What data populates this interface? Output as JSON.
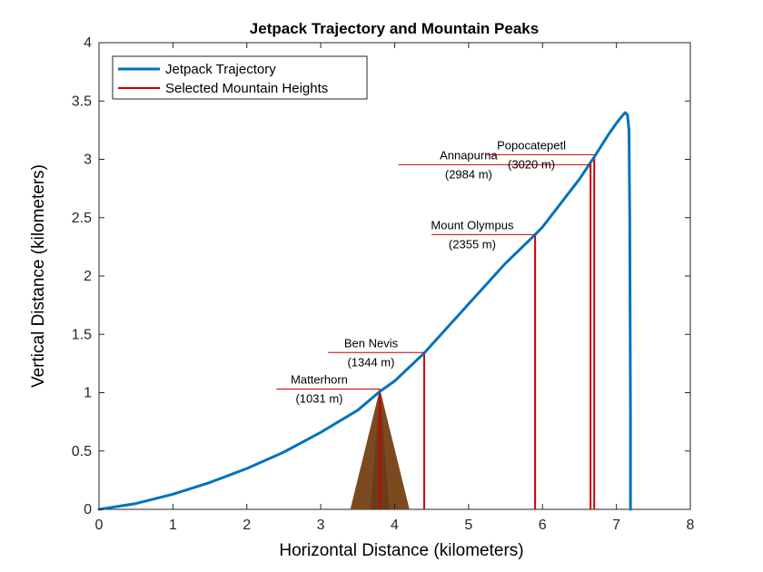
{
  "chart_data": {
    "type": "line",
    "title": "Jetpack Trajectory and Mountain Peaks",
    "xlabel": "Horizontal Distance (kilometers)",
    "ylabel": "Vertical Distance (kilometers)",
    "xlim": [
      0,
      8
    ],
    "ylim": [
      0,
      4
    ],
    "xticks": [
      "0",
      "1",
      "2",
      "3",
      "4",
      "5",
      "6",
      "7",
      "8"
    ],
    "yticks": [
      "0",
      "0.5",
      "1",
      "1.5",
      "2",
      "2.5",
      "3",
      "3.5",
      "4"
    ],
    "grid": false,
    "legend_position": "top-left",
    "series": [
      {
        "name": "Jetpack Trajectory",
        "color": "#0072BD",
        "x": [
          0,
          0.5,
          1,
          1.5,
          2,
          2.5,
          3,
          3.5,
          3.8,
          4,
          4.4,
          4.5,
          5,
          5.5,
          5.9,
          6,
          6.5,
          6.7,
          6.9,
          7.0,
          7.1,
          7.12,
          7.15,
          7.17,
          7.18,
          7.19,
          7.19
        ],
        "y": [
          0,
          0.05,
          0.13,
          0.23,
          0.35,
          0.49,
          0.66,
          0.85,
          1.01,
          1.1,
          1.34,
          1.41,
          1.76,
          2.11,
          2.355,
          2.42,
          2.83,
          3.02,
          3.22,
          3.31,
          3.39,
          3.4,
          3.38,
          3.25,
          2.5,
          0.8,
          0
        ]
      },
      {
        "name": "Selected Mountain Heights",
        "color": "#CC0000"
      }
    ],
    "mountains": [
      {
        "name": "Matterhorn",
        "height_label": "(1031 m)",
        "x": 3.8,
        "height": 1.031
      },
      {
        "name": "Ben Nevis",
        "height_label": "(1344 m)",
        "x": 4.4,
        "height": 1.344
      },
      {
        "name": "Mount Olympus",
        "height_label": "(2355 m)",
        "x": 5.9,
        "height": 2.355
      },
      {
        "name": "Annapurna",
        "height_label": "(2984 m)",
        "x": 6.65,
        "height": 2.984
      },
      {
        "name": "Popocatepetl",
        "height_label": "(3020 m)",
        "x": 6.7,
        "height": 3.02
      }
    ],
    "mountain_shape": {
      "color": "#7B4A1E",
      "peak": [
        3.8,
        1.031
      ],
      "base": [
        3.4,
        4.2
      ]
    }
  }
}
